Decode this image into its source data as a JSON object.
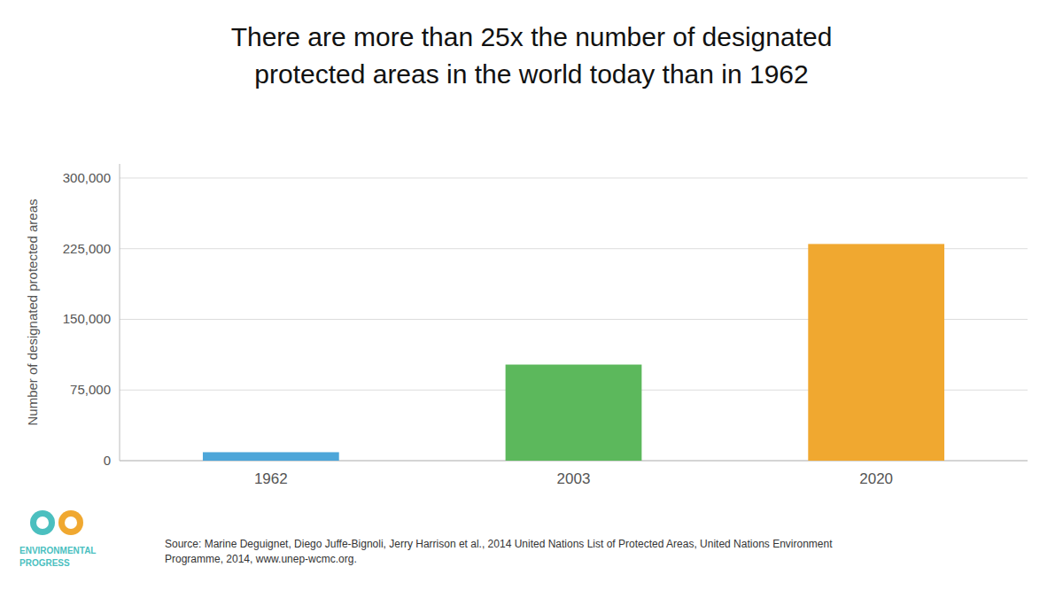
{
  "chart_data": {
    "type": "bar",
    "title": "There are more than 25x the number of designated\nprotected areas in the world today than in 1962",
    "categories": [
      "1962",
      "2003",
      "2020"
    ],
    "values": [
      9000,
      102000,
      230000
    ],
    "colors": [
      "#4da6d9",
      "#5cb85c",
      "#f0a830"
    ],
    "y_label": "Number of designated protected areas",
    "ylim": [
      0,
      315000
    ],
    "yticks": [
      0,
      {
        "value": 75000,
        "label": "75,000"
      },
      {
        "value": 150000,
        "label": "150,000"
      },
      {
        "value": 225000,
        "label": "225,000"
      },
      {
        "value": 300000,
        "label": "300,000"
      }
    ],
    "grid": true,
    "annotations": [
      "Source: Marine Deguignet, Diego Juffe-Bignoli, Jerry Harrison et al., 2014 United Nations List of Protected Areas, United Nations Environment\nProgramme, 2014, www.unep-wcmc.org.",
      "ENVIRONMENTAL",
      "PROGRESS"
    ]
  }
}
